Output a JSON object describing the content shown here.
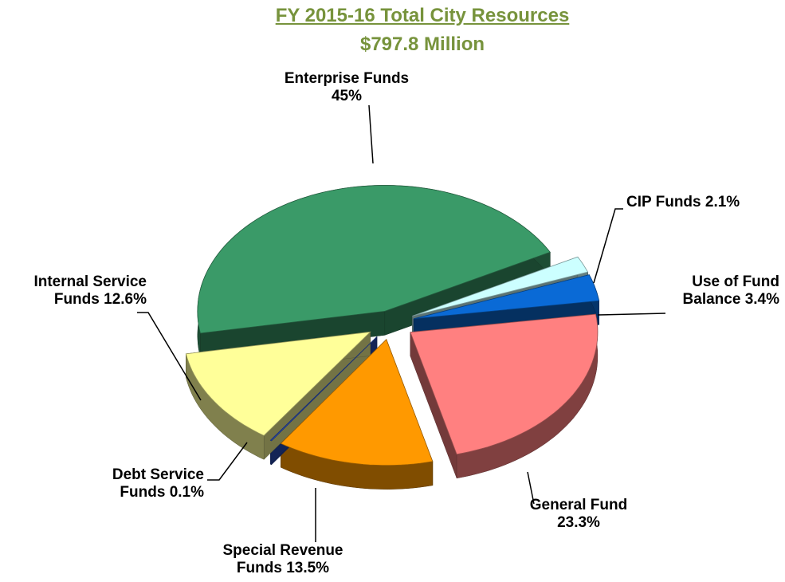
{
  "chart_data": {
    "type": "pie",
    "title": "FY 2015-16 Total City Resources",
    "subtitle": "$797.8 Million",
    "categories": [
      "Enterprise Funds",
      "CIP Funds",
      "Use of Fund Balance",
      "General Fund",
      "Special Revenue Funds",
      "Debt Service Funds",
      "Internal Service Funds"
    ],
    "values": [
      45,
      2.1,
      3.4,
      23.3,
      13.5,
      0.1,
      12.6
    ],
    "value_labels": [
      "45%",
      "2.1%",
      "3.4%",
      "23.3%",
      "13.5%",
      "0.1%",
      "12.6%"
    ],
    "colors": [
      "#3a9a68",
      "#ccffff",
      "#0a6ad6",
      "#ff8080",
      "#ff9900",
      "#2d50c0",
      "#ffff99"
    ]
  }
}
